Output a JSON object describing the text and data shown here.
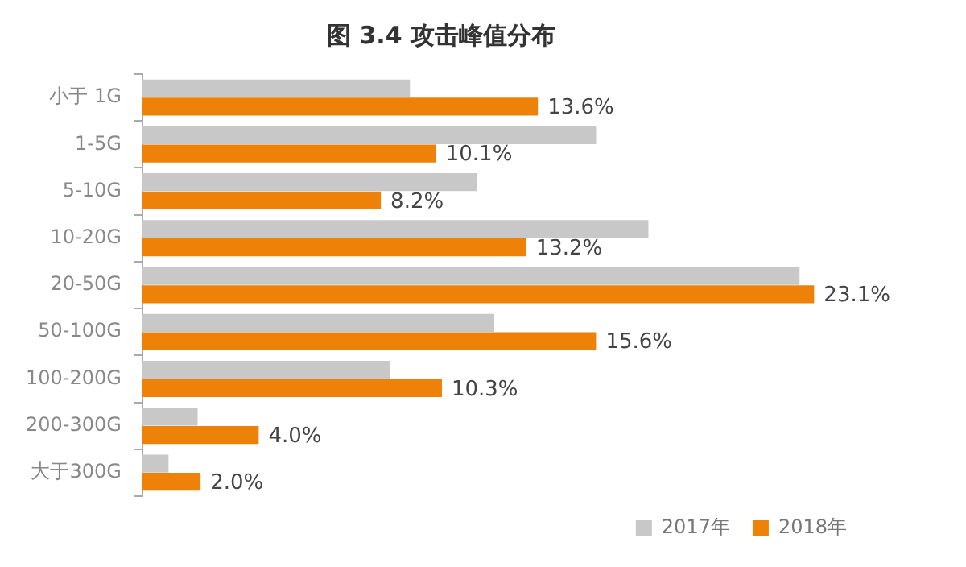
{
  "chart_data": {
    "type": "bar",
    "orientation": "horizontal",
    "title": "图 3.4 攻击峰值分布",
    "categories": [
      "小于 1G",
      "1-5G",
      "5-10G",
      "10-20G",
      "20-50G",
      "50-100G",
      "100-200G",
      "200-300G",
      "大于300G"
    ],
    "series": [
      {
        "name": "2017年",
        "color": "#c8c8c8",
        "values": [
          9.2,
          15.6,
          11.5,
          17.4,
          22.6,
          12.1,
          8.5,
          1.9,
          0.9
        ]
      },
      {
        "name": "2018年",
        "color": "#ee8208",
        "values": [
          13.6,
          10.1,
          8.2,
          13.2,
          23.1,
          15.6,
          10.3,
          4.0,
          2.0
        ],
        "value_labels": [
          "13.6%",
          "10.1%",
          "8.2%",
          "13.2%",
          "23.1%",
          "15.6%",
          "10.3%",
          "4.0%",
          "2.0%"
        ]
      }
    ],
    "legend": "bottom right"
  }
}
